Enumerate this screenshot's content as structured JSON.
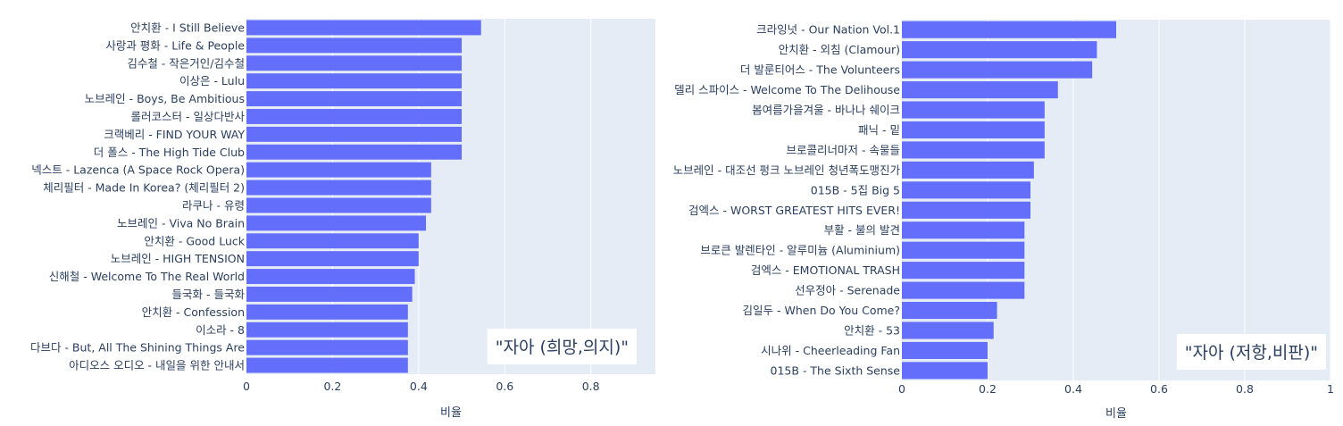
{
  "chart_data": [
    {
      "type": "bar",
      "orientation": "horizontal",
      "categories": [
        "안치환 - I Still Believe",
        "사랑과 평화 - Life & People",
        "김수철 - 작은거인/김수철",
        "이상은 - Lulu",
        "노브레인 - Boys, Be Ambitious",
        "롤러코스터 - 일상다반사",
        "크랙베리 - FIND YOUR WAY",
        "더 폴스 - The High Tide Club",
        "넥스트 - Lazenca (A Space Rock Opera)",
        "체리필터 - Made In Korea? (체리필터 2)",
        "라쿠나 - 유령",
        "노브레인 - Viva No Brain",
        "안치환 - Good Luck",
        "노브레인 - HIGH TENSION",
        "신해철  - Welcome To The Real World",
        "들국화 - 들국화",
        "안치환 - Confession",
        "이소라 - 8",
        "다브다 - But, All The Shining Things Are",
        "아디오스 오디오 - 내일을 위한 안내서"
      ],
      "values": [
        0.545,
        0.5,
        0.5,
        0.5,
        0.5,
        0.5,
        0.5,
        0.5,
        0.429,
        0.429,
        0.429,
        0.417,
        0.4,
        0.4,
        0.391,
        0.385,
        0.375,
        0.375,
        0.375,
        0.375
      ],
      "xlabel": "비율",
      "xlim": [
        0,
        0.95
      ],
      "xticks": [
        "0",
        "0.2",
        "0.4",
        "0.6",
        "0.8"
      ],
      "xtick_values": [
        0,
        0.2,
        0.4,
        0.6,
        0.8
      ],
      "annotation": "\"자아 (희망,의지)\"",
      "bar_color": "#636efa",
      "plot_bg": "#e5ecf6",
      "grid": true
    },
    {
      "type": "bar",
      "orientation": "horizontal",
      "categories": [
        "크라잉넛 - Our Nation Vol.1",
        "안치환 - 외침 (Clamour)",
        "더 발룬티어스 - The Volunteers",
        "델리 스파이스 - Welcome To The Delihouse",
        "봄여름가을겨울 - 바나나 쉐이크",
        "패닉 - 밑",
        "브로콜리너마저 - 속물들",
        "노브레인 - 대조선 펑크 노브레인 청년폭도맹진가",
        "015B - 5집 Big 5",
        "검엑스 - WORST GREATEST HITS EVER!",
        "부활 - 불의 발견",
        "브로큰 발렌타인 - 알루미늄 (Aluminium)",
        "검엑스 - EMOTIONAL TRASH",
        "선우정아 - Serenade",
        "김일두 - When Do You Come?",
        "안치환 - 53",
        "시나위 - Cheerleading Fan",
        "015B - The Sixth Sense"
      ],
      "values": [
        0.5,
        0.455,
        0.444,
        0.364,
        0.333,
        0.333,
        0.333,
        0.308,
        0.3,
        0.3,
        0.286,
        0.286,
        0.286,
        0.286,
        0.222,
        0.214,
        0.2,
        0.2
      ],
      "xlabel": "비율",
      "xlim": [
        0,
        1
      ],
      "xticks": [
        "0",
        "0.2",
        "0.4",
        "0.6",
        "0.8",
        "1"
      ],
      "xtick_values": [
        0,
        0.2,
        0.4,
        0.6,
        0.8,
        1
      ],
      "annotation": "\"자아 (저항,비판)\"",
      "bar_color": "#636efa",
      "plot_bg": "#e5ecf6",
      "grid": true
    }
  ]
}
